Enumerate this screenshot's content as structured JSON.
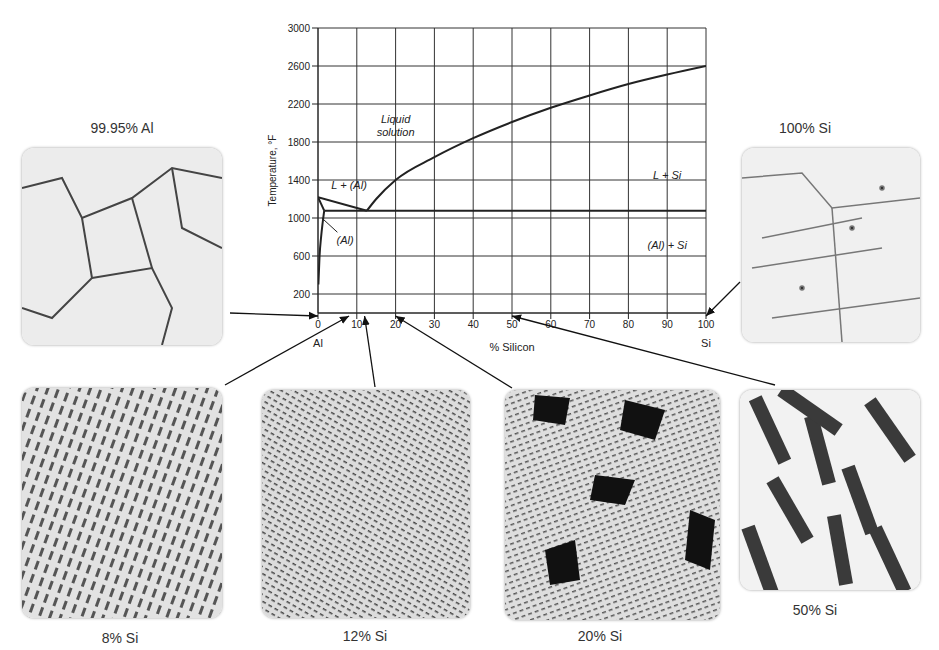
{
  "chart_data": {
    "type": "line",
    "x_label": "% Silicon",
    "y_label": "Temperature, °F",
    "xlim": [
      0,
      100
    ],
    "xticks": [
      0,
      10,
      20,
      30,
      40,
      50,
      60,
      70,
      80,
      90,
      100
    ],
    "ylim": [
      0,
      3000
    ],
    "yticks": [
      200,
      600,
      1000,
      1400,
      1800,
      2200,
      2600,
      3000
    ],
    "grid": true,
    "axis_end_labels": [
      {
        "x": 0,
        "text": "Al"
      },
      {
        "x": 100,
        "text": "Si"
      }
    ],
    "series": [
      {
        "color": "#222222",
        "x": [
          0,
          12.6
        ],
        "values": [
          1220,
          1077
        ]
      },
      {
        "color": "#222222",
        "x": [
          12.6,
          15,
          20,
          30,
          40,
          50,
          60,
          70,
          80,
          90,
          100
        ],
        "values": [
          1077,
          1200,
          1400,
          1640,
          1840,
          2010,
          2160,
          2290,
          2410,
          2510,
          2600
        ]
      },
      {
        "color": "#222222",
        "x": [
          1.6,
          100
        ],
        "values": [
          1077,
          1077
        ]
      },
      {
        "color": "#222222",
        "x": [
          0,
          1.6
        ],
        "values": [
          1220,
          1077
        ]
      },
      {
        "color": "#222222",
        "x": [
          1.6,
          1.2,
          0.8,
          0.4,
          0.1
        ],
        "values": [
          1077,
          950,
          800,
          600,
          300
        ]
      }
    ],
    "annotations": [
      {
        "text": "Liquid solution",
        "x": 20,
        "y": 1980
      },
      {
        "text": "L + Si",
        "x": 90,
        "y": 1450
      },
      {
        "text": "L + (Al)",
        "x": 8,
        "y": 1350
      },
      {
        "text": "(Al)",
        "x": 7,
        "y": 770,
        "leader": {
          "x": [
            5,
            1
          ],
          "y": [
            850,
            1000
          ]
        }
      },
      {
        "text": "(Al) + Si",
        "x": 90,
        "y": 720
      }
    ]
  },
  "micrographs": [
    {
      "label": "99.95% Al",
      "x": 0
    },
    {
      "label": "100% Si",
      "x": 100
    },
    {
      "label": "8% Si",
      "x": 8
    },
    {
      "label": "12% Si",
      "x": 12
    },
    {
      "label": "20% Si",
      "x": 20
    },
    {
      "label": "50% Si",
      "x": 50
    }
  ]
}
